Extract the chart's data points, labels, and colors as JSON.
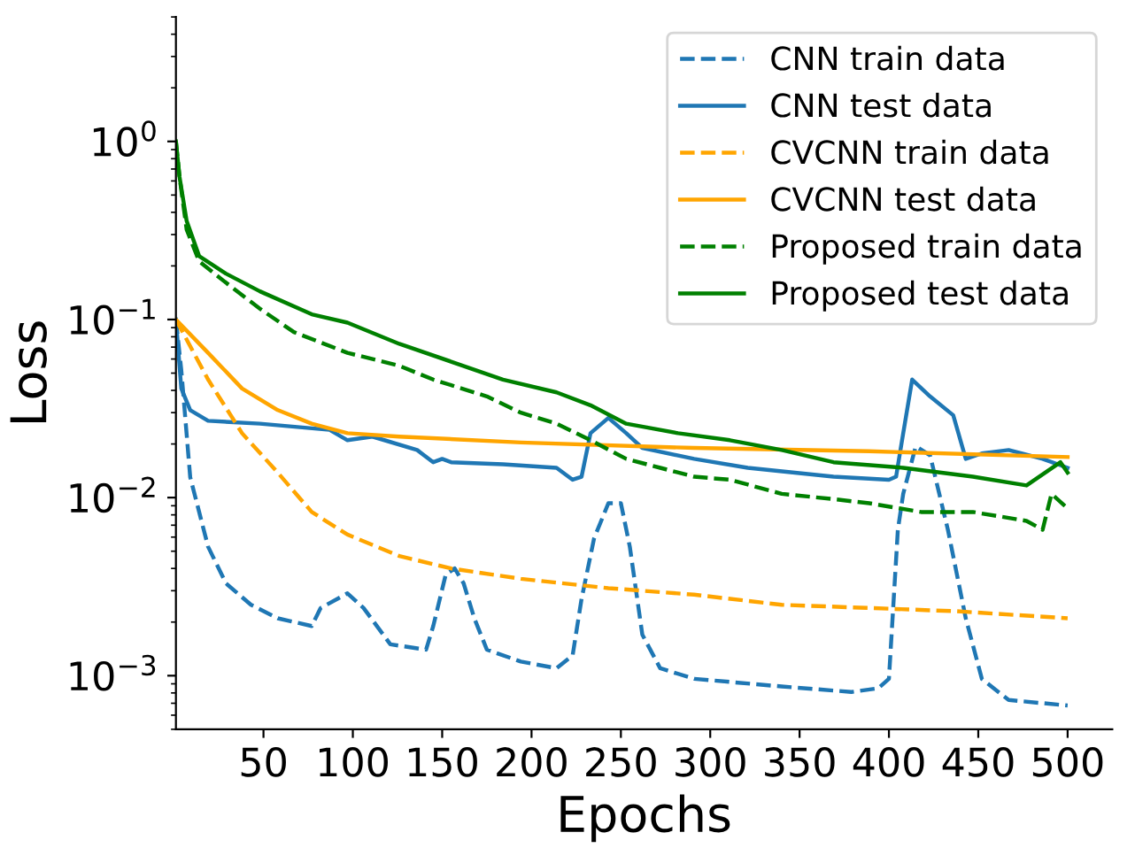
{
  "chart_data": {
    "type": "line",
    "xlabel": "Epochs",
    "ylabel": "Loss",
    "log": "y",
    "legend": "top right",
    "grid": false,
    "xlim": [
      1,
      525
    ],
    "xticks": [
      50,
      100,
      150,
      200,
      250,
      300,
      350,
      400,
      450,
      500
    ],
    "ylim": [
      0.0005,
      5
    ],
    "yticks": [
      {
        "value": 0.001,
        "label": "10$^{−3}$"
      },
      {
        "value": 0.01,
        "label": "10$^{−2}$"
      },
      {
        "value": 0.1,
        "label": "10$^{−1}$"
      },
      {
        "value": 1,
        "label": "10$^{0}$"
      }
    ],
    "series": [
      {
        "name": "CNN train data",
        "color": "#1f77b4",
        "line_style": "dashed",
        "x": [
          1,
          4,
          9,
          19,
          29,
          43,
          58,
          77,
          82,
          97,
          106,
          121,
          141,
          145,
          152,
          157,
          162,
          168,
          175,
          194,
          214,
          223,
          228,
          235,
          243,
          250,
          255,
          262,
          272,
          291,
          340,
          379,
          394,
          400,
          405,
          408,
          415,
          423,
          433,
          443,
          452,
          467,
          500
        ],
        "values": [
          0.1,
          0.052,
          0.013,
          0.0053,
          0.0033,
          0.0025,
          0.0021,
          0.0019,
          0.0024,
          0.0029,
          0.0024,
          0.0015,
          0.0014,
          0.0019,
          0.0037,
          0.004,
          0.0033,
          0.0021,
          0.0014,
          0.0012,
          0.0011,
          0.0013,
          0.0027,
          0.0059,
          0.0093,
          0.0093,
          0.0053,
          0.0017,
          0.0011,
          0.00096,
          0.00087,
          0.00081,
          0.00085,
          0.00096,
          0.0066,
          0.0105,
          0.0194,
          0.0173,
          0.0066,
          0.0021,
          0.00096,
          0.00073,
          0.00068
        ]
      },
      {
        "name": "CNN test data",
        "color": "#1f77b4",
        "line_style": "solid",
        "x": [
          1,
          4,
          9,
          19,
          48,
          87,
          97,
          111,
          136,
          145,
          150,
          155,
          184,
          214,
          223,
          228,
          233,
          243,
          253,
          262,
          291,
          321,
          369,
          400,
          404,
          408,
          413,
          423,
          436,
          443,
          452,
          467,
          486,
          500
        ],
        "values": [
          0.1,
          0.041,
          0.031,
          0.027,
          0.026,
          0.024,
          0.021,
          0.022,
          0.0185,
          0.0158,
          0.0165,
          0.0158,
          0.0154,
          0.0147,
          0.0126,
          0.0131,
          0.023,
          0.028,
          0.023,
          0.019,
          0.0165,
          0.0147,
          0.0131,
          0.0126,
          0.0131,
          0.023,
          0.046,
          0.037,
          0.029,
          0.0165,
          0.0177,
          0.0185,
          0.0165,
          0.0147
        ]
      },
      {
        "name": "CVCNN train data",
        "color": "#ffa500",
        "line_style": "dashed",
        "x": [
          1,
          19,
          38,
          58,
          77,
          97,
          126,
          155,
          194,
          243,
          291,
          340,
          389,
          438,
          500
        ],
        "values": [
          0.1,
          0.046,
          0.023,
          0.0138,
          0.0083,
          0.0062,
          0.0047,
          0.004,
          0.0035,
          0.0031,
          0.00285,
          0.0025,
          0.0024,
          0.0023,
          0.0021
        ]
      },
      {
        "name": "CVCNN test data",
        "color": "#ffa500",
        "line_style": "solid",
        "x": [
          1,
          19,
          38,
          58,
          77,
          97,
          126,
          194,
          291,
          389,
          500
        ],
        "values": [
          0.1,
          0.065,
          0.041,
          0.031,
          0.026,
          0.023,
          0.022,
          0.0204,
          0.019,
          0.0182,
          0.0169
        ]
      },
      {
        "name": "Proposed train data",
        "color": "#008000",
        "line_style": "dashed",
        "x": [
          1,
          3,
          7,
          14,
          29,
          48,
          67,
          97,
          126,
          145,
          175,
          194,
          214,
          233,
          253,
          272,
          291,
          311,
          340,
          369,
          389,
          418,
          447,
          477,
          486,
          491,
          500
        ],
        "values": [
          1.0,
          0.634,
          0.32,
          0.212,
          0.161,
          0.115,
          0.085,
          0.065,
          0.055,
          0.046,
          0.037,
          0.03,
          0.026,
          0.021,
          0.0165,
          0.0147,
          0.0131,
          0.0126,
          0.0105,
          0.0098,
          0.0093,
          0.0083,
          0.0083,
          0.0074,
          0.0066,
          0.0105,
          0.0087
        ]
      },
      {
        "name": "Proposed test data",
        "color": "#008000",
        "line_style": "solid",
        "x": [
          1,
          3,
          7,
          14,
          29,
          48,
          77,
          97,
          126,
          155,
          184,
          214,
          233,
          253,
          282,
          311,
          340,
          369,
          408,
          447,
          477,
          496,
          500
        ],
        "values": [
          1.0,
          0.634,
          0.358,
          0.227,
          0.181,
          0.144,
          0.107,
          0.096,
          0.073,
          0.058,
          0.046,
          0.039,
          0.033,
          0.026,
          0.023,
          0.021,
          0.0185,
          0.0158,
          0.0147,
          0.0131,
          0.0117,
          0.0158,
          0.0138
        ]
      }
    ]
  }
}
